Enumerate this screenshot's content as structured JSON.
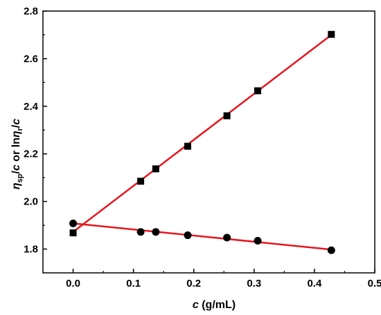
{
  "chart_data": {
    "type": "scatter",
    "title": "",
    "xlabel": {
      "main": "c",
      "unit": " (g/mL)"
    },
    "ylabel": {
      "p1": "η",
      "sub1": "sp",
      "p2": "/",
      "italic2": "c",
      "p3": " or ln",
      "italic3": "η",
      "sub3": "r",
      "p4": "/",
      "italic4": "c"
    },
    "xlim": [
      -0.05,
      0.5
    ],
    "ylim": [
      1.7,
      2.8
    ],
    "x_ticks": [
      0.0,
      0.1,
      0.2,
      0.3,
      0.4,
      0.5
    ],
    "x_tick_labels": [
      "0.0",
      "0.1",
      "0.2",
      "0.3",
      "0.4",
      "0.5"
    ],
    "y_ticks": [
      1.8,
      2.0,
      2.2,
      2.4,
      2.6,
      2.8
    ],
    "y_tick_labels": [
      "1.8",
      "2.0",
      "2.2",
      "2.4",
      "2.6",
      "2.8"
    ],
    "grid": false,
    "legend": "none",
    "series": [
      {
        "marker": "square",
        "color": "#000000",
        "points": [
          {
            "x": 0.0,
            "y": 1.868
          },
          {
            "x": 0.112,
            "y": 2.085
          },
          {
            "x": 0.137,
            "y": 2.137
          },
          {
            "x": 0.19,
            "y": 2.232
          },
          {
            "x": 0.255,
            "y": 2.36
          },
          {
            "x": 0.306,
            "y": 2.465
          },
          {
            "x": 0.428,
            "y": 2.702
          }
        ],
        "fit": {
          "color": "#e8141c",
          "x": [
            0.0,
            0.428
          ],
          "y": [
            1.872,
            2.7
          ]
        }
      },
      {
        "marker": "circle",
        "color": "#000000",
        "points": [
          {
            "x": 0.0,
            "y": 1.908
          },
          {
            "x": 0.112,
            "y": 1.872
          },
          {
            "x": 0.137,
            "y": 1.872
          },
          {
            "x": 0.19,
            "y": 1.858
          },
          {
            "x": 0.255,
            "y": 1.848
          },
          {
            "x": 0.306,
            "y": 1.835
          },
          {
            "x": 0.428,
            "y": 1.795
          }
        ],
        "fit": {
          "color": "#e8141c",
          "x": [
            0.0,
            0.428
          ],
          "y": [
            1.908,
            1.798
          ]
        }
      }
    ]
  }
}
